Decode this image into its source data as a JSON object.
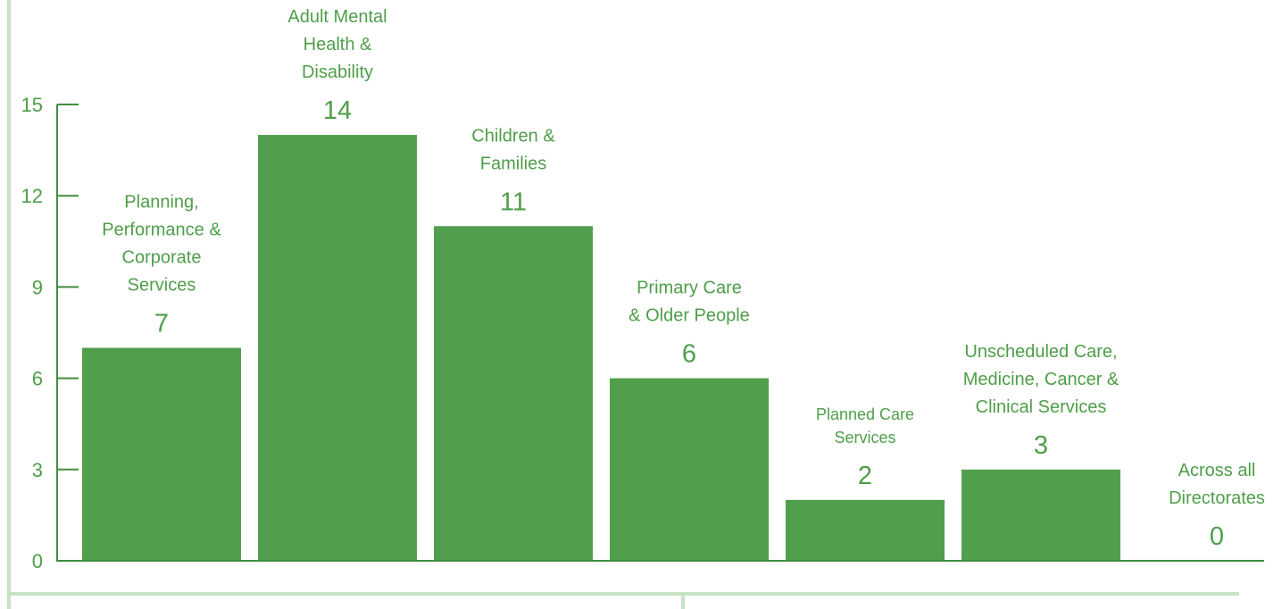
{
  "chart_data": {
    "type": "bar",
    "categories": [
      [
        "Planning,",
        "Performance &",
        "Corporate",
        "Services"
      ],
      [
        "Adult Mental",
        "Health &",
        "Disability"
      ],
      [
        "Children &",
        "Families"
      ],
      [
        "Primary Care",
        "& Older People"
      ],
      [
        "Planned Care",
        "Services"
      ],
      [
        "Unscheduled Care,",
        "Medicine, Cancer &",
        "Clinical Services"
      ],
      [
        "Across all",
        "Directorates"
      ]
    ],
    "values": [
      7,
      14,
      11,
      6,
      2,
      3,
      0
    ],
    "value_labels": [
      "7",
      "14",
      "11",
      "6",
      "2",
      "3",
      "0"
    ],
    "yticks": [
      "0",
      "3",
      "6",
      "9",
      "12",
      "15"
    ],
    "ylim": [
      0,
      15
    ],
    "grid": false,
    "colors": {
      "bar": "#519f4d",
      "text": "#4e9e4a",
      "axis": "#3e8e3e",
      "frame": "#c6e4c5"
    }
  }
}
